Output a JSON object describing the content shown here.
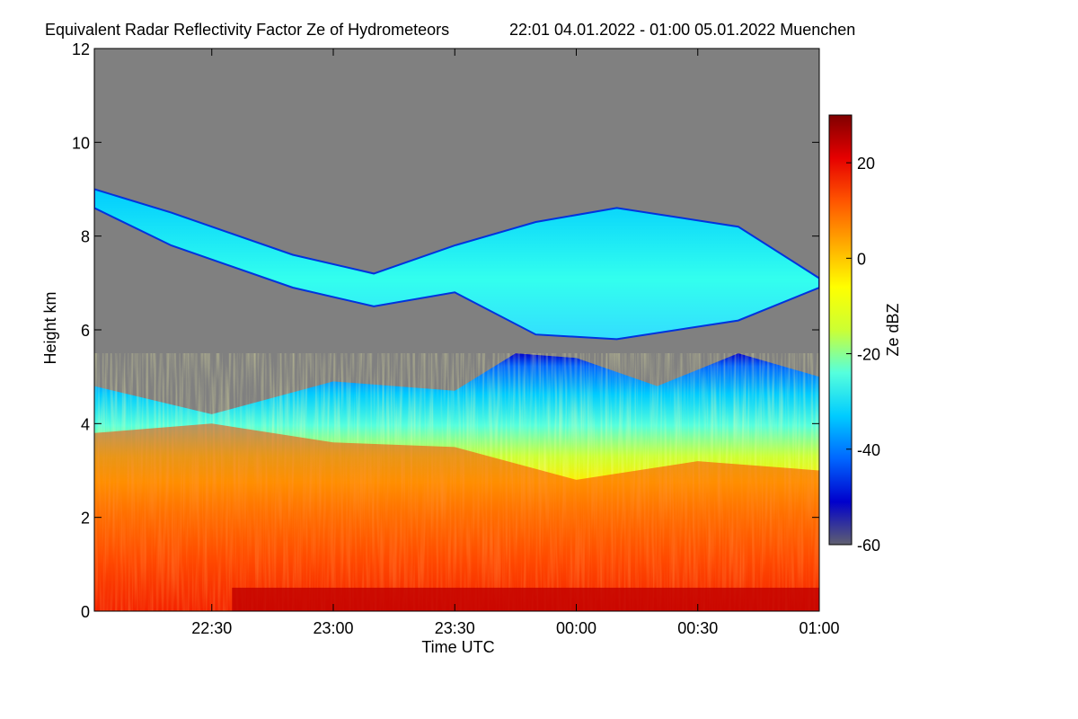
{
  "chart_data": {
    "type": "heatmap",
    "title": "Equivalent Radar Reflectivity Factor Ze of Hydrometeors",
    "subtitle": "22:01 04.01.2022 - 01:00 05.01.2022 Muenchen",
    "xlabel": "Time UTC",
    "ylabel": "Height km",
    "colorbar_label": "Ze dBZ",
    "xlim": [
      "22:01",
      "01:00"
    ],
    "ylim": [
      0,
      12
    ],
    "clim": [
      -60,
      30
    ],
    "x_ticks": [
      "22:30",
      "23:00",
      "23:30",
      "00:00",
      "00:30",
      "01:00"
    ],
    "y_ticks": [
      "0",
      "2",
      "4",
      "6",
      "8",
      "10",
      "12"
    ],
    "colorbar_ticks": [
      "20",
      "0",
      "-20",
      "-40",
      "-60"
    ],
    "no_echo_color": "#808080",
    "colormap": [
      "#606070",
      "#0000cc",
      "#0066ff",
      "#00ccff",
      "#55ffdd",
      "#ccff33",
      "#ffff00",
      "#ffaa00",
      "#ff5500",
      "#e60000",
      "#800000"
    ],
    "regions": [
      {
        "name": "upper-cloud-layer",
        "ze_dbz": -20,
        "top_km": [
          9.0,
          8.5,
          7.6,
          7.2,
          7.8,
          8.3,
          8.6,
          8.2,
          7.1
        ],
        "bottom_km": [
          8.6,
          7.8,
          6.9,
          6.5,
          6.8,
          5.9,
          5.8,
          6.2,
          6.9
        ],
        "time": [
          "22:01",
          "22:20",
          "22:50",
          "23:10",
          "23:30",
          "23:50",
          "00:10",
          "00:40",
          "01:00"
        ]
      },
      {
        "name": "lower-cloud-top",
        "ze_dbz": -40,
        "time": [
          "22:01",
          "22:30",
          "23:00",
          "23:30",
          "23:45",
          "00:00",
          "00:20",
          "00:40",
          "01:00"
        ],
        "top_km": [
          4.8,
          4.2,
          4.9,
          4.7,
          5.5,
          5.4,
          4.8,
          5.5,
          5.0
        ]
      },
      {
        "name": "precipitation-core",
        "ze_dbz": 20,
        "time": [
          "22:01",
          "22:30",
          "23:00",
          "23:30",
          "00:00",
          "00:30",
          "01:00"
        ],
        "top_km": [
          3.8,
          4.0,
          3.6,
          3.5,
          2.8,
          3.2,
          3.0
        ]
      },
      {
        "name": "melting-layer-bright-band",
        "ze_dbz": 28,
        "top_km": 0.5,
        "time": [
          "22:35",
          "01:00"
        ]
      }
    ]
  }
}
